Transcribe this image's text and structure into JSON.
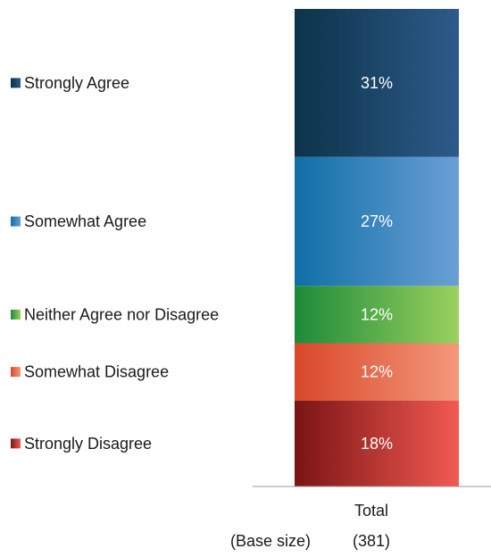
{
  "chart_data": {
    "type": "bar",
    "stacked": true,
    "categories": [
      "Total"
    ],
    "base_size_label": "(Base size)",
    "base_sizes": [
      "(381)"
    ],
    "series": [
      {
        "name": "Strongly Agree",
        "values": [
          31
        ],
        "label": "31%",
        "color_dark": "#0c3349",
        "color_light": "#2d5a8a"
      },
      {
        "name": "Somewhat Agree",
        "values": [
          27
        ],
        "label": "27%",
        "color_dark": "#0f6fa6",
        "color_light": "#6b9fd6"
      },
      {
        "name": "Neither Agree nor Disagree",
        "values": [
          12
        ],
        "label": "12%",
        "color_dark": "#1c8a3a",
        "color_light": "#9bd15e"
      },
      {
        "name": "Somewhat Disagree",
        "values": [
          12
        ],
        "label": "12%",
        "color_dark": "#d9472b",
        "color_light": "#f4987a"
      },
      {
        "name": "Strongly Disagree",
        "values": [
          18
        ],
        "label": "18%",
        "color_dark": "#7a1414",
        "color_light": "#f25a52"
      }
    ],
    "legend_placement": "left",
    "grid": false
  }
}
